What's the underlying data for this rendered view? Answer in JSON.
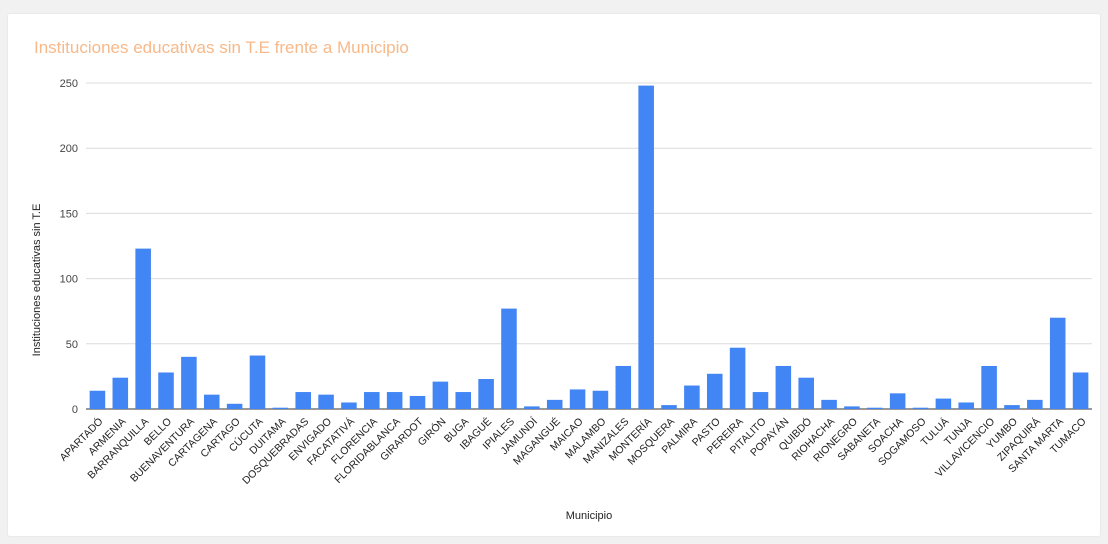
{
  "chart_data": {
    "type": "bar",
    "title": "Instituciones educativas sin T.E frente a Municipio",
    "xlabel": "Municipio",
    "ylabel": "Instituciones educativas sin T.E",
    "ylim": [
      0,
      250
    ],
    "yticks": [
      0,
      50,
      100,
      150,
      200,
      250
    ],
    "grid": true,
    "legend": "none",
    "bar_color": "#4285f4",
    "title_color": "#f7b98a",
    "categories": [
      "APARTADÓ",
      "ARMENIA",
      "BARRANQUILLA",
      "BELLO",
      "BUENAVENTURA",
      "CARTAGENA",
      "CARTAGO",
      "CÚCUTA",
      "DUITAMA",
      "DOSQUEBRADAS",
      "ENVIGADO",
      "FACATATIVÁ",
      "FLORENCIA",
      "FLORIDABLANCA",
      "GIRARDOT",
      "GIRÓN",
      "BUGA",
      "IBAGUÉ",
      "IPIALES",
      "JAMUNDÍ",
      "MAGANGUÉ",
      "MAICAO",
      "MALAMBO",
      "MANIZALES",
      "MONTERÍA",
      "MOSQUERA",
      "PALMIRA",
      "PASTO",
      "PEREIRA",
      "PITALITO",
      "POPAYÁN",
      "QUIBDÓ",
      "RIOHACHA",
      "RIONEGRO",
      "SABANETA",
      "SOACHA",
      "SOGAMOSO",
      "TULUÁ",
      "TUNJA",
      "VILLAVICENCIO",
      "YUMBO",
      "ZIPAQUIRÁ",
      "SANTA MARTA",
      "TUMACO"
    ],
    "values": [
      14,
      24,
      123,
      28,
      40,
      11,
      4,
      41,
      1,
      13,
      11,
      5,
      13,
      13,
      10,
      21,
      13,
      23,
      77,
      2,
      7,
      15,
      14,
      33,
      248,
      3,
      18,
      27,
      47,
      13,
      33,
      24,
      7,
      2,
      1,
      12,
      1,
      8,
      5,
      33,
      3,
      7,
      70,
      28
    ]
  }
}
